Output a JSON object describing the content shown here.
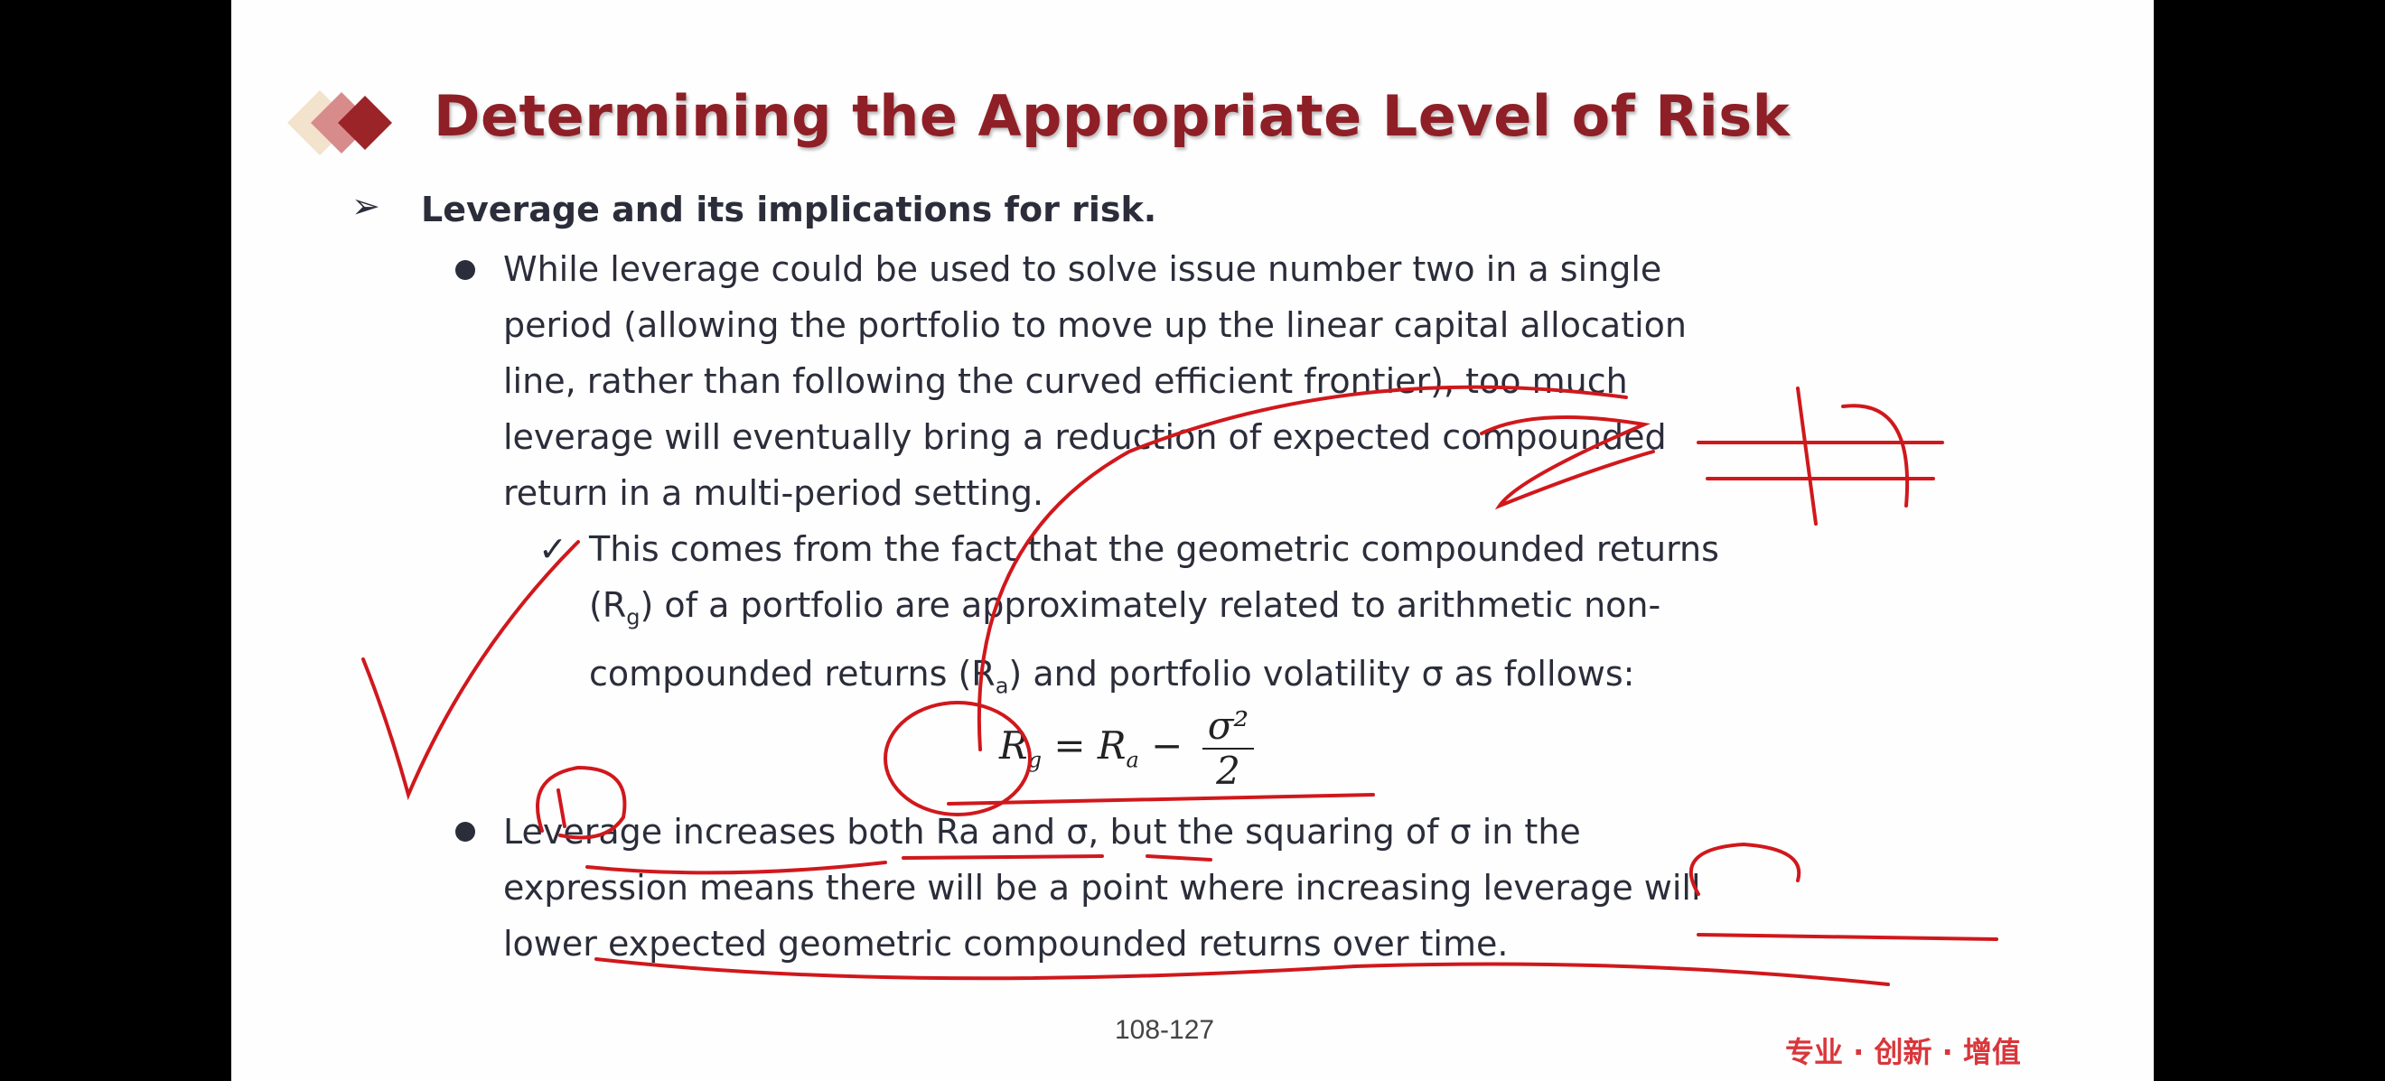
{
  "slide": {
    "title": "Determining the Appropriate Level of Risk",
    "heading": "Leverage and its implications for risk.",
    "bullet1_lines": [
      "While leverage could be used to solve issue number two in a single",
      "period (allowing the portfolio to move up the linear capital allocation",
      "line, rather than following the curved efficient frontier), too much",
      "leverage will eventually bring a reduction of expected compounded",
      "return in a multi-period setting."
    ],
    "sub_bullet": {
      "line1": "This comes from the fact that the geometric compounded returns",
      "line2_a": "(R",
      "line2_sub": "g",
      "line2_b": ") of a portfolio are approximately related to arithmetic non-",
      "line3_a": "compounded returns (R",
      "line3_sub": "a",
      "line3_b": ") and portfolio volatility σ as follows:"
    },
    "formula": {
      "lhs": "R",
      "lhs_sub": "g",
      "eq": " = R",
      "rhs_sub": "a",
      "minus": " − ",
      "numerator": "σ²",
      "denominator": "2"
    },
    "bullet2_lines": [
      "Leverage increases both Ra and σ, but the squaring of σ in the",
      "expression means there will be a point where increasing leverage will",
      "lower expected geometric compounded returns over time."
    ],
    "page_number": "108-127",
    "footer_slogan": "专业 · 创新 · 增值"
  },
  "colors": {
    "title": "#8e1f26",
    "text": "#2b2d3a",
    "ink": "#d0181c",
    "slogan": "#d9363b"
  }
}
